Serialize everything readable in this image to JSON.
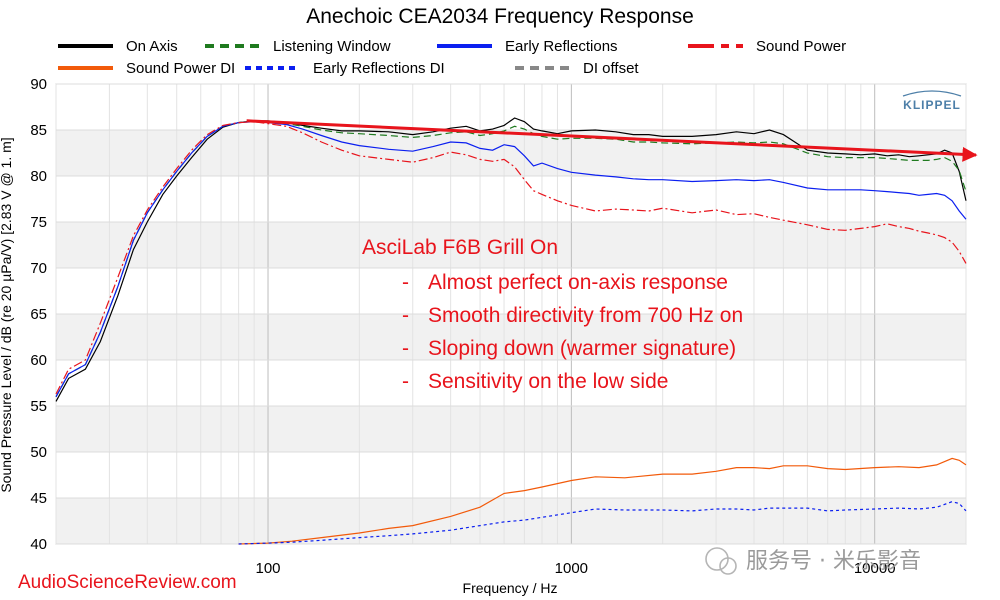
{
  "chart_data": {
    "type": "line",
    "title": "Anechoic CEA2034 Frequency Response",
    "xlabel": "Frequency / Hz",
    "ylabel": "Sound Pressure Level / dB (re 20 µPa/V)  [2.83  V @ 1. m]",
    "xscale": "log",
    "xlim": [
      20,
      20000
    ],
    "ylim": [
      40,
      90
    ],
    "xticks": [
      {
        "value": 100,
        "label": "100"
      },
      {
        "value": 1000,
        "label": "1000"
      },
      {
        "value": 10000,
        "label": "10000"
      }
    ],
    "yticks": [
      40,
      45,
      50,
      55,
      60,
      65,
      70,
      75,
      80,
      85,
      90
    ],
    "legend": [
      "On Axis",
      "Listening Window",
      "Early Reflections",
      "Sound Power",
      "Sound Power DI",
      "Early Reflections DI",
      "DI offset"
    ],
    "series": [
      {
        "name": "On Axis",
        "color": "#000000",
        "dash": "solid",
        "x": [
          20,
          22,
          25,
          28,
          32,
          36,
          40,
          45,
          50,
          56,
          63,
          71,
          80,
          90,
          100,
          115,
          130,
          150,
          175,
          200,
          250,
          300,
          350,
          400,
          450,
          500,
          550,
          600,
          650,
          700,
          750,
          800,
          900,
          1000,
          1200,
          1400,
          1600,
          1800,
          2000,
          2500,
          3000,
          3500,
          4000,
          4500,
          5000,
          6000,
          7000,
          8000,
          9000,
          10000,
          11000,
          12000,
          13000,
          14000,
          15000,
          16000,
          17000,
          18000,
          19000,
          20000
        ],
        "y": [
          55.5,
          58,
          59,
          62,
          67,
          72,
          75,
          78,
          80,
          82,
          84,
          85.3,
          85.8,
          86,
          86,
          85.8,
          85.5,
          85.2,
          84.9,
          84.9,
          84.8,
          84.5,
          84.8,
          85.2,
          85.4,
          84.9,
          85.1,
          85.5,
          86.3,
          85.9,
          85.1,
          84.9,
          84.6,
          84.9,
          85,
          84.8,
          84.5,
          84.5,
          84.3,
          84.3,
          84.5,
          84.8,
          84.6,
          85,
          84.5,
          82.8,
          82.5,
          82.4,
          82.3,
          82.4,
          82.2,
          82.3,
          82.1,
          82.2,
          82.3,
          82.4,
          82.8,
          82.5,
          80.5,
          77.3
        ]
      },
      {
        "name": "Listening Window",
        "color": "#1f7a1f",
        "dash": "dashed",
        "x": [
          20,
          22,
          25,
          28,
          32,
          36,
          40,
          45,
          50,
          56,
          63,
          71,
          80,
          90,
          100,
          115,
          130,
          150,
          175,
          200,
          250,
          300,
          350,
          400,
          450,
          500,
          550,
          600,
          650,
          700,
          750,
          800,
          900,
          1000,
          1200,
          1400,
          1600,
          1800,
          2000,
          2500,
          3000,
          3500,
          4000,
          4500,
          5000,
          6000,
          7000,
          8000,
          9000,
          10000,
          11000,
          12000,
          13000,
          14000,
          15000,
          16000,
          17000,
          18000,
          19000,
          20000
        ],
        "y": [
          56,
          58.5,
          59.5,
          63,
          68,
          73,
          76,
          78.5,
          80.5,
          82.5,
          84.3,
          85.4,
          85.8,
          86,
          85.9,
          85.7,
          85.4,
          85,
          84.7,
          84.6,
          84.4,
          84.2,
          84.4,
          84.7,
          84.8,
          84.4,
          84.6,
          84.9,
          85.4,
          85.1,
          84.6,
          84.3,
          84,
          84.1,
          84.1,
          84,
          83.7,
          83.7,
          83.6,
          83.5,
          83.6,
          83.7,
          83.6,
          83.7,
          83.5,
          82.5,
          82.1,
          82,
          82,
          82,
          81.9,
          81.8,
          81.7,
          81.7,
          81.7,
          81.8,
          82,
          81.6,
          80.6,
          78.3
        ]
      },
      {
        "name": "Early Reflections",
        "color": "#0b1ff0",
        "dash": "solid",
        "x": [
          20,
          22,
          25,
          28,
          32,
          36,
          40,
          45,
          50,
          56,
          63,
          71,
          80,
          90,
          100,
          115,
          130,
          150,
          175,
          200,
          250,
          300,
          350,
          400,
          450,
          500,
          550,
          600,
          650,
          700,
          750,
          800,
          900,
          1000,
          1200,
          1400,
          1600,
          1800,
          2000,
          2500,
          3000,
          3500,
          4000,
          4500,
          5000,
          6000,
          7000,
          8000,
          9000,
          10000,
          11000,
          12000,
          13000,
          14000,
          15000,
          16000,
          17000,
          18000,
          19000,
          20000
        ],
        "y": [
          56,
          58.5,
          59.5,
          63,
          68,
          73,
          76,
          78.5,
          80.5,
          82.5,
          84.3,
          85.4,
          85.8,
          85.9,
          85.8,
          85.6,
          85.1,
          84.4,
          83.7,
          83.3,
          82.9,
          82.7,
          83.2,
          83.7,
          83.6,
          83,
          82.8,
          83.4,
          83.2,
          82.2,
          81.1,
          81.4,
          80.8,
          80.4,
          80.1,
          79.9,
          79.7,
          79.6,
          79.6,
          79.4,
          79.5,
          79.6,
          79.5,
          79.6,
          79.3,
          78.7,
          78.5,
          78.5,
          78.5,
          78.4,
          78.3,
          78.2,
          78.1,
          77.9,
          78,
          78.1,
          77.9,
          77.3,
          76.2,
          75.3
        ]
      },
      {
        "name": "Sound Power",
        "color": "#e8141c",
        "dash": "dashdot",
        "x": [
          20,
          22,
          25,
          28,
          32,
          36,
          40,
          45,
          50,
          56,
          63,
          71,
          80,
          90,
          100,
          115,
          130,
          150,
          175,
          200,
          250,
          300,
          350,
          400,
          450,
          500,
          550,
          600,
          650,
          700,
          750,
          800,
          900,
          1000,
          1200,
          1400,
          1600,
          1800,
          2000,
          2500,
          3000,
          3500,
          4000,
          4500,
          5000,
          6000,
          7000,
          8000,
          9000,
          10000,
          11000,
          12000,
          13000,
          14000,
          15000,
          16000,
          17000,
          18000,
          19000,
          20000
        ],
        "y": [
          56.3,
          59,
          60,
          64,
          69,
          73.5,
          76.3,
          78.8,
          80.8,
          82.8,
          84.5,
          85.5,
          85.8,
          85.9,
          85.7,
          85.4,
          84.7,
          83.7,
          82.8,
          82.2,
          81.8,
          81.5,
          82,
          82.6,
          82.3,
          81.8,
          81.6,
          81.8,
          81,
          79.6,
          78.4,
          78,
          77.3,
          76.8,
          76.2,
          76.4,
          76.3,
          76.2,
          76.5,
          76,
          76.3,
          75.8,
          75.9,
          75.5,
          75.2,
          74.7,
          74.2,
          74.1,
          74.3,
          74.5,
          74.8,
          74.5,
          74.3,
          74,
          73.8,
          73.6,
          73.3,
          72.8,
          71.8,
          70.5
        ]
      },
      {
        "name": "Sound Power DI",
        "color": "#f25a0a",
        "dash": "solid",
        "x": [
          80,
          100,
          120,
          150,
          200,
          250,
          300,
          400,
          500,
          600,
          700,
          800,
          1000,
          1200,
          1500,
          2000,
          2500,
          3000,
          3500,
          4000,
          4500,
          5000,
          6000,
          7000,
          8000,
          10000,
          12000,
          14000,
          16000,
          18000,
          19000,
          20000
        ],
        "y": [
          40,
          40.1,
          40.3,
          40.7,
          41.2,
          41.7,
          42,
          43,
          44,
          45.5,
          45.8,
          46.2,
          46.9,
          47.3,
          47.2,
          47.6,
          47.6,
          47.9,
          48.3,
          48.3,
          48.2,
          48.5,
          48.5,
          48.2,
          48.1,
          48.3,
          48.4,
          48.3,
          48.6,
          49.3,
          49.1,
          48.6
        ]
      },
      {
        "name": "Early Reflections DI",
        "color": "#0b1ff0",
        "dash": "dotted",
        "x": [
          80,
          100,
          120,
          150,
          200,
          250,
          300,
          400,
          500,
          600,
          700,
          800,
          1000,
          1200,
          1500,
          2000,
          2500,
          3000,
          3500,
          4000,
          4500,
          5000,
          6000,
          7000,
          8000,
          10000,
          12000,
          14000,
          16000,
          18000,
          19000,
          20000
        ],
        "y": [
          40,
          40.1,
          40.2,
          40.4,
          40.7,
          40.9,
          41.1,
          41.5,
          42,
          42.4,
          42.6,
          42.9,
          43.4,
          43.8,
          43.7,
          43.7,
          43.6,
          43.8,
          43.8,
          43.7,
          43.9,
          43.9,
          43.9,
          43.6,
          43.7,
          43.8,
          43.9,
          43.8,
          44,
          44.6,
          44.4,
          43.6
        ]
      },
      {
        "name": "DI offset",
        "color": "#888888",
        "dash": "dashed",
        "x": [],
        "y": []
      }
    ],
    "annotations": {
      "product": "AsciLab F6B Grill On",
      "bullets": [
        "Almost perfect on-axis response",
        "Smooth directivity from 700 Hz on",
        "Sloping down (warmer signature)",
        "Sensitivity on the low side"
      ],
      "bullet_marker": "-",
      "trend_arrow": {
        "from": [
          85,
          86
        ],
        "to": [
          20000,
          82.5
        ],
        "color": "#e8141c"
      }
    }
  },
  "watermarks": {
    "left": "AudioScienceReview.com",
    "right": "服务号 · 米乐影音",
    "logo": "KLIPPEL"
  }
}
